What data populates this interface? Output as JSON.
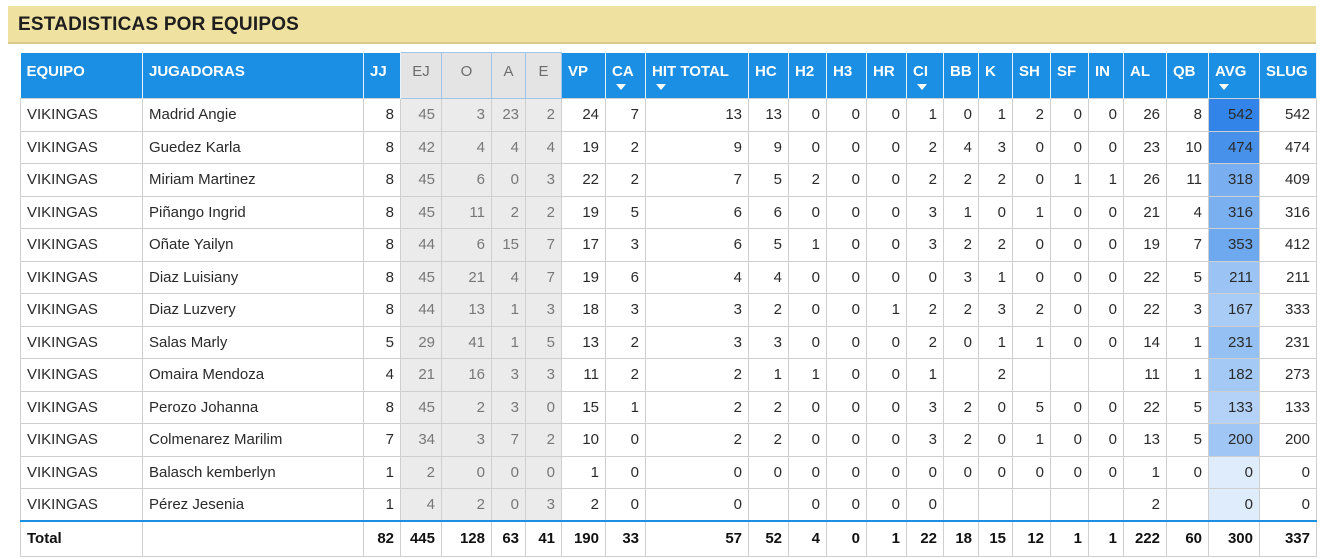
{
  "title": "ESTADISTICAS POR EQUIPOS",
  "table": {
    "header": [
      "EQUIPO",
      "JUGADORAS",
      "JJ",
      "EJ",
      "O",
      "A",
      "E",
      "VP",
      "CA",
      "HIT TOTAL",
      "HC",
      "H2",
      "H3",
      "HR",
      "CI",
      "BB",
      "K",
      "SH",
      "SF",
      "IN",
      "AL",
      "QB",
      "AVG",
      "SLUG"
    ],
    "rows": [
      [
        "VIKINGAS",
        "Madrid Angie",
        8,
        45,
        3,
        23,
        2,
        24,
        7,
        13,
        13,
        0,
        0,
        0,
        1,
        0,
        1,
        2,
        0,
        0,
        26,
        8,
        542,
        542
      ],
      [
        "VIKINGAS",
        "Guedez Karla",
        8,
        42,
        4,
        4,
        4,
        19,
        2,
        9,
        9,
        0,
        0,
        0,
        2,
        4,
        3,
        0,
        0,
        0,
        23,
        10,
        474,
        474
      ],
      [
        "VIKINGAS",
        "Miriam Martinez",
        8,
        45,
        6,
        0,
        3,
        22,
        2,
        7,
        5,
        2,
        0,
        0,
        2,
        2,
        2,
        0,
        1,
        1,
        26,
        11,
        318,
        409
      ],
      [
        "VIKINGAS",
        "Piñango Ingrid",
        8,
        45,
        11,
        2,
        2,
        19,
        5,
        6,
        6,
        0,
        0,
        0,
        3,
        1,
        0,
        1,
        0,
        0,
        21,
        4,
        316,
        316
      ],
      [
        "VIKINGAS",
        "Oñate Yailyn",
        8,
        44,
        6,
        15,
        7,
        17,
        3,
        6,
        5,
        1,
        0,
        0,
        3,
        2,
        2,
        0,
        0,
        0,
        19,
        7,
        353,
        412
      ],
      [
        "VIKINGAS",
        "Diaz Luisiany",
        8,
        45,
        21,
        4,
        7,
        19,
        6,
        4,
        4,
        0,
        0,
        0,
        0,
        3,
        1,
        0,
        0,
        0,
        22,
        5,
        211,
        211
      ],
      [
        "VIKINGAS",
        "Diaz Luzvery",
        8,
        44,
        13,
        1,
        3,
        18,
        3,
        3,
        2,
        0,
        0,
        1,
        2,
        2,
        3,
        2,
        0,
        0,
        22,
        3,
        167,
        333
      ],
      [
        "VIKINGAS",
        "Salas Marly",
        5,
        29,
        41,
        1,
        5,
        13,
        2,
        3,
        3,
        0,
        0,
        0,
        2,
        0,
        1,
        1,
        0,
        0,
        14,
        1,
        231,
        231
      ],
      [
        "VIKINGAS",
        "Omaira Mendoza",
        4,
        21,
        16,
        3,
        3,
        11,
        2,
        2,
        1,
        1,
        0,
        0,
        1,
        null,
        2,
        null,
        null,
        null,
        11,
        1,
        182,
        273
      ],
      [
        "VIKINGAS",
        "Perozo Johanna",
        8,
        45,
        2,
        3,
        0,
        15,
        1,
        2,
        2,
        0,
        0,
        0,
        3,
        2,
        0,
        5,
        0,
        0,
        22,
        5,
        133,
        133
      ],
      [
        "VIKINGAS",
        "Colmenarez Marilim",
        7,
        34,
        3,
        7,
        2,
        10,
        0,
        2,
        2,
        0,
        0,
        0,
        3,
        2,
        0,
        1,
        0,
        0,
        13,
        5,
        200,
        200
      ],
      [
        "VIKINGAS",
        "Balasch kemberlyn",
        1,
        2,
        0,
        0,
        0,
        1,
        0,
        0,
        0,
        0,
        0,
        0,
        0,
        0,
        0,
        0,
        0,
        0,
        1,
        0,
        0,
        0
      ],
      [
        "VIKINGAS",
        "Pérez Jesenia",
        1,
        4,
        2,
        0,
        3,
        2,
        0,
        0,
        null,
        0,
        0,
        0,
        0,
        null,
        null,
        null,
        null,
        null,
        2,
        null,
        0,
        0
      ]
    ],
    "total": [
      "Total",
      null,
      82,
      445,
      128,
      63,
      41,
      190,
      33,
      57,
      52,
      4,
      0,
      1,
      22,
      18,
      15,
      12,
      1,
      1,
      222,
      60,
      300,
      337
    ]
  }
}
